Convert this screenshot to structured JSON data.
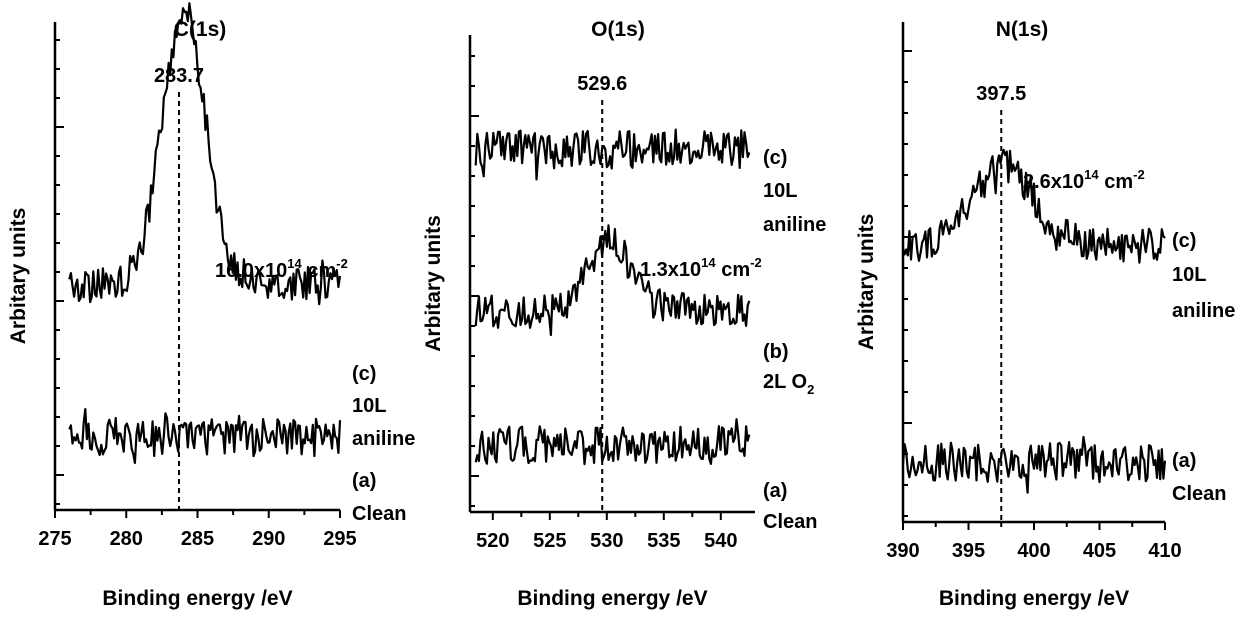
{
  "figure": {
    "chart_data": [
      {
        "type": "line",
        "title": "C(1s)",
        "xlabel": "Binding energy /eV",
        "ylabel": "Arbitary units",
        "xlim": [
          275,
          295
        ],
        "xticks": [
          275,
          280,
          285,
          290,
          295
        ],
        "xtick_labels": [
          "275",
          "280",
          "285",
          "290",
          "295"
        ],
        "yticks_labeled": false,
        "peak_marker": {
          "x": 283.7,
          "label": "283.7"
        },
        "annotation": {
          "base": "16.0x10",
          "exp": "14",
          "unit": " cm",
          "unit_exp": "-2"
        },
        "series": [
          {
            "label_lines": [
              "(a)",
              "Clean"
            ],
            "x_range": [
              276,
              295
            ],
            "shape": "flat",
            "level": 0.15
          },
          {
            "label_lines": [
              "(c)",
              "10L",
              "aniline"
            ],
            "x_range": [
              276,
              295
            ],
            "shape": "peak",
            "level": 0.46,
            "peak_center": 284,
            "peak_height": 0.56,
            "peak_width": 1.5
          }
        ]
      },
      {
        "type": "line",
        "title": "O(1s)",
        "xlabel": "Binding energy /eV",
        "ylabel": "Arbitary units",
        "xlim": [
          518,
          543
        ],
        "xticks": [
          520,
          525,
          530,
          535,
          540
        ],
        "xtick_labels": [
          "520",
          "525",
          "530",
          "535",
          "540"
        ],
        "yticks_labeled": false,
        "peak_marker": {
          "x": 529.6,
          "label": "529.6"
        },
        "annotation": {
          "base": "1.3x10",
          "exp": "14",
          "unit": " cm",
          "unit_exp": "-2"
        },
        "series": [
          {
            "label_lines": [
              "(a)",
              "Clean"
            ],
            "x_range": [
              518.5,
              542.5
            ],
            "shape": "flat",
            "level": 0.14
          },
          {
            "label_lines": [
              "(b)",
              "2L O",
              "2"
            ],
            "x_range": [
              518.5,
              542.5
            ],
            "shape": "peak",
            "level": 0.42,
            "peak_center": 530,
            "peak_height": 0.14,
            "peak_width": 1.8
          },
          {
            "label_lines": [
              "(c)",
              "10L",
              "aniline"
            ],
            "x_range": [
              518.5,
              542.5
            ],
            "shape": "flat",
            "level": 0.76
          }
        ]
      },
      {
        "type": "line",
        "title": "N(1s)",
        "xlabel": "Binding energy /eV",
        "ylabel": "Arbitary units",
        "xlim": [
          390,
          410
        ],
        "xticks": [
          390,
          395,
          400,
          405,
          410
        ],
        "xtick_labels": [
          "390",
          "395",
          "400",
          "405",
          "410"
        ],
        "yticks_labeled": false,
        "peak_marker": {
          "x": 397.5,
          "label": "397.5"
        },
        "annotation": {
          "base": "2.6x10",
          "exp": "14",
          "unit": " cm",
          "unit_exp": "-2"
        },
        "series": [
          {
            "label_lines": [
              "(a)",
              "Clean"
            ],
            "x_range": [
              390,
              410
            ],
            "shape": "flat",
            "level": 0.12
          },
          {
            "label_lines": [
              "(c)",
              "10L",
              "aniline"
            ],
            "x_range": [
              390,
              410
            ],
            "shape": "peak",
            "level": 0.55,
            "peak_center": 397.5,
            "peak_height": 0.16,
            "peak_width": 2.2
          }
        ]
      }
    ]
  }
}
